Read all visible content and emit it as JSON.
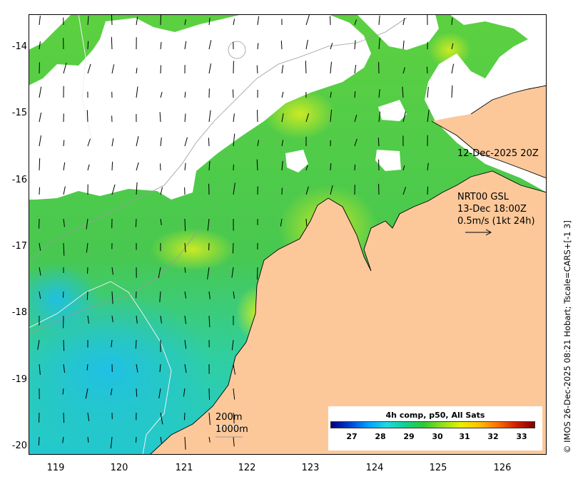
{
  "map": {
    "x_ticks": [
      "119",
      "120",
      "121",
      "122",
      "123",
      "124",
      "125",
      "126"
    ],
    "y_ticks": [
      "-14",
      "-15",
      "-16",
      "-17",
      "-18",
      "-19",
      "-20"
    ],
    "land_color": "#fcc89a",
    "cloud_color": "#ffffff"
  },
  "annotations": {
    "image_time": "12-Dec-2025 20Z",
    "model_name": "NRT00 GSL",
    "model_time": "13-Dec 18:00Z",
    "vector_scale": "0.5m/s (1kt 24h)",
    "contour_200": "200m",
    "contour_1000": "1000m"
  },
  "colorbar": {
    "title": "4h comp, p50, All Sats",
    "labels": [
      "27",
      "28",
      "29",
      "30",
      "31",
      "32",
      "33"
    ],
    "colors": [
      "#00007f",
      "#0040d0",
      "#00a0ff",
      "#20d8e0",
      "#10d090",
      "#30c830",
      "#90e020",
      "#e8f000",
      "#ffc000",
      "#ff7000",
      "#d02000",
      "#800000"
    ]
  },
  "credit": "© IMOS 26-Dec-2025 08:21 Hobart; Tscale=CARS+[-1 3]"
}
